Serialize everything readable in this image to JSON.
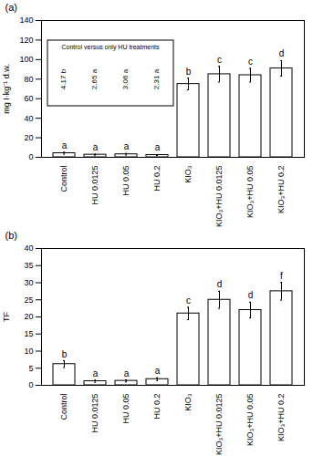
{
  "chart_data": [
    {
      "type": "bar",
      "title": "(a)",
      "ylabel": "mg I·kg⁻¹ d.w.",
      "categories": [
        "Control",
        "HU 0.0125",
        "HU 0.05",
        "HU 0.2",
        "KIO₃",
        "KIO₃+HU 0.0125",
        "KIO₃+HU 0.05",
        "KIO₃+HU 0.2"
      ],
      "values": [
        4.17,
        2.65,
        3.06,
        2.31,
        75,
        85,
        84,
        91
      ],
      "errors": [
        1,
        0.5,
        0.8,
        0.5,
        6,
        8,
        7,
        8
      ],
      "significance_letters": [
        "a",
        "a",
        "a",
        "a",
        "b",
        "c",
        "c",
        "d"
      ],
      "inset": {
        "title": "Control versus only HU treatments",
        "labels": [
          "4.17 b",
          "2.65 a",
          "3.06 a",
          "2.31 a"
        ]
      },
      "color": "#ffffff",
      "ylim": [
        0,
        140
      ],
      "yticks": [
        0,
        20,
        40,
        60,
        80,
        100,
        120,
        140
      ],
      "grid": false
    },
    {
      "type": "bar",
      "title": "(b)",
      "ylabel": "TF",
      "categories": [
        "Control",
        "HU 0.0125",
        "HU 0.05",
        "HU 0.2",
        "KIO₃",
        "KIO₃+HU 0.0125",
        "KIO₃+HU 0.05",
        "KIO₃+HU 0.2"
      ],
      "values": [
        6.2,
        1.2,
        1.3,
        1.8,
        21,
        25,
        22,
        27.5
      ],
      "errors": [
        1,
        0.3,
        0.3,
        0.4,
        1.8,
        2.5,
        2.3,
        2.6
      ],
      "significance_letters": [
        "b",
        "a",
        "a",
        "a",
        "c",
        "d",
        "d",
        "f"
      ],
      "color": "#ffffff",
      "ylim": [
        0,
        40
      ],
      "yticks": [
        0,
        5,
        10,
        15,
        20,
        25,
        30,
        35,
        40
      ],
      "grid": false
    }
  ]
}
